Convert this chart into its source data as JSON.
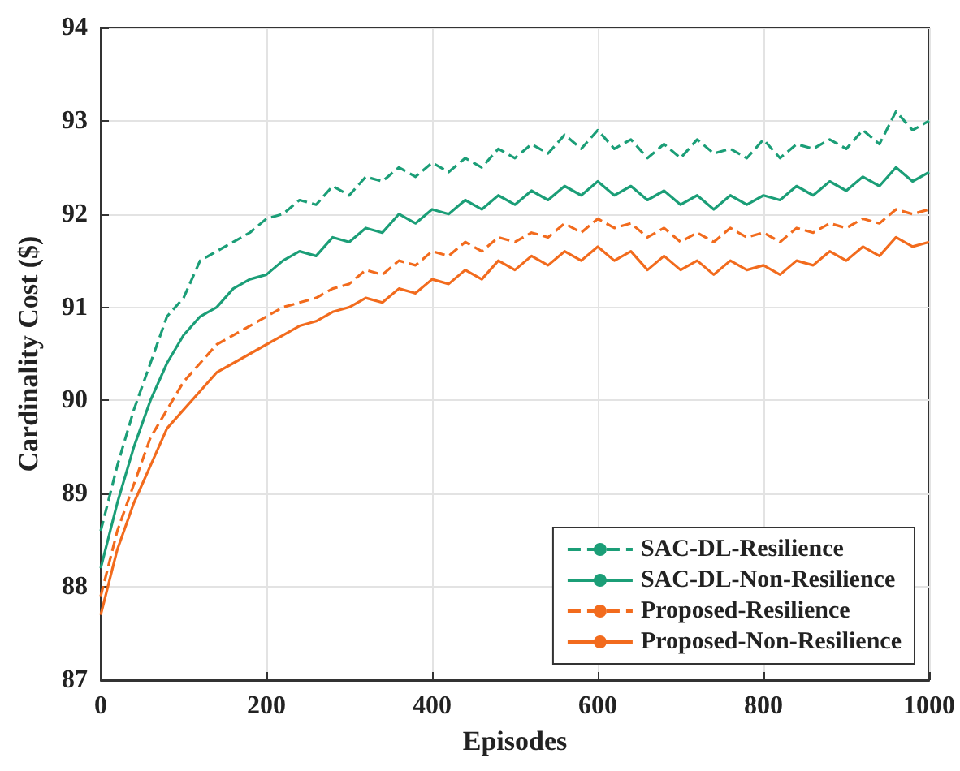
{
  "chart_data": {
    "type": "line",
    "xlabel": "Episodes",
    "ylabel": "Cardinality Cost ($)",
    "x": [
      0,
      20,
      40,
      60,
      80,
      100,
      120,
      140,
      160,
      180,
      200,
      220,
      240,
      260,
      280,
      300,
      320,
      340,
      360,
      380,
      400,
      420,
      440,
      460,
      480,
      500,
      520,
      540,
      560,
      580,
      600,
      620,
      640,
      660,
      680,
      700,
      720,
      740,
      760,
      780,
      800,
      820,
      840,
      860,
      880,
      900,
      920,
      940,
      960,
      980,
      1000
    ],
    "series": [
      {
        "name": "SAC-DL-Resilience",
        "color": "#1b9e77",
        "line_style": "dashed",
        "values": [
          88.6,
          89.3,
          89.9,
          90.4,
          90.9,
          91.1,
          91.5,
          91.6,
          91.7,
          91.8,
          91.95,
          92.0,
          92.15,
          92.1,
          92.3,
          92.2,
          92.4,
          92.35,
          92.5,
          92.4,
          92.55,
          92.45,
          92.6,
          92.5,
          92.7,
          92.6,
          92.75,
          92.65,
          92.85,
          92.7,
          92.9,
          92.7,
          92.8,
          92.6,
          92.75,
          92.6,
          92.8,
          92.65,
          92.7,
          92.6,
          92.8,
          92.6,
          92.75,
          92.7,
          92.8,
          92.7,
          92.9,
          92.75,
          93.1,
          92.9,
          93.0
        ]
      },
      {
        "name": "SAC-DL-Non-Resilience",
        "color": "#1b9e77",
        "line_style": "solid",
        "values": [
          88.2,
          88.9,
          89.5,
          90.0,
          90.4,
          90.7,
          90.9,
          91.0,
          91.2,
          91.3,
          91.35,
          91.5,
          91.6,
          91.55,
          91.75,
          91.7,
          91.85,
          91.8,
          92.0,
          91.9,
          92.05,
          92.0,
          92.15,
          92.05,
          92.2,
          92.1,
          92.25,
          92.15,
          92.3,
          92.2,
          92.35,
          92.2,
          92.3,
          92.15,
          92.25,
          92.1,
          92.2,
          92.05,
          92.2,
          92.1,
          92.2,
          92.15,
          92.3,
          92.2,
          92.35,
          92.25,
          92.4,
          92.3,
          92.5,
          92.35,
          92.45
        ]
      },
      {
        "name": "Proposed-Resilience",
        "color": "#f26b1d",
        "line_style": "dashed",
        "values": [
          87.9,
          88.6,
          89.1,
          89.6,
          89.9,
          90.2,
          90.4,
          90.6,
          90.7,
          90.8,
          90.9,
          91.0,
          91.05,
          91.1,
          91.2,
          91.25,
          91.4,
          91.35,
          91.5,
          91.45,
          91.6,
          91.55,
          91.7,
          91.6,
          91.75,
          91.7,
          91.8,
          91.75,
          91.9,
          91.8,
          91.95,
          91.85,
          91.9,
          91.75,
          91.85,
          91.7,
          91.8,
          91.7,
          91.85,
          91.75,
          91.8,
          91.7,
          91.85,
          91.8,
          91.9,
          91.85,
          91.95,
          91.9,
          92.05,
          92.0,
          92.05
        ]
      },
      {
        "name": "Proposed-Non-Resilience",
        "color": "#f26b1d",
        "line_style": "solid",
        "values": [
          87.7,
          88.4,
          88.9,
          89.3,
          89.7,
          89.9,
          90.1,
          90.3,
          90.4,
          90.5,
          90.6,
          90.7,
          90.8,
          90.85,
          90.95,
          91.0,
          91.1,
          91.05,
          91.2,
          91.15,
          91.3,
          91.25,
          91.4,
          91.3,
          91.5,
          91.4,
          91.55,
          91.45,
          91.6,
          91.5,
          91.65,
          91.5,
          91.6,
          91.4,
          91.55,
          91.4,
          91.5,
          91.35,
          91.5,
          91.4,
          91.45,
          91.35,
          91.5,
          91.45,
          91.6,
          91.5,
          91.65,
          91.55,
          91.75,
          91.65,
          91.7
        ]
      }
    ],
    "xlim": [
      0,
      1000
    ],
    "xticks": [
      0,
      200,
      400,
      600,
      800,
      1000
    ],
    "ylim": [
      87,
      94
    ],
    "yticks": [
      87,
      88,
      89,
      90,
      91,
      92,
      93,
      94
    ],
    "grid": true,
    "legend": "bottom right",
    "marker": "none"
  }
}
